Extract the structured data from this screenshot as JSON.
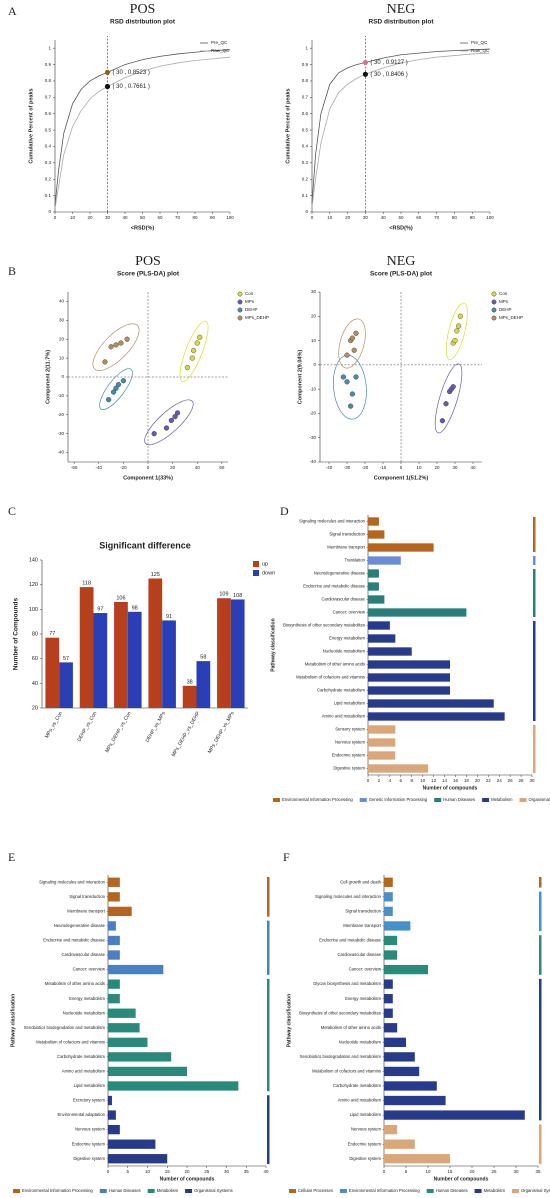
{
  "chart_data": [
    {
      "type": "line",
      "panel": "A",
      "title": "POS",
      "subtitle": "RSD distribution plot",
      "xlabel": "<RSD(%)",
      "ylabel": "Cumulative Percent of peaks",
      "xlim": [
        0,
        100
      ],
      "xticks": [
        0,
        10,
        20,
        30,
        40,
        50,
        60,
        70,
        80,
        90,
        100
      ],
      "ylim": [
        0,
        1.05
      ],
      "yticks": [
        0,
        0.1,
        0.2,
        0.3,
        0.4,
        0.5,
        0.6,
        0.7,
        0.8,
        0.9,
        1
      ],
      "legend": "upper right",
      "series": [
        {
          "name": "Pre_QC",
          "color": "#555555",
          "x": [
            0,
            2,
            5,
            10,
            15,
            20,
            25,
            30,
            40,
            50,
            60,
            70,
            80,
            90,
            100
          ],
          "values": [
            0.04,
            0.25,
            0.48,
            0.66,
            0.75,
            0.8,
            0.83,
            0.8523,
            0.9,
            0.93,
            0.95,
            0.965,
            0.975,
            0.985,
            0.99
          ]
        },
        {
          "name": "Raw_QC",
          "color": "#aaaaaa",
          "x": [
            0,
            2,
            5,
            10,
            15,
            20,
            25,
            30,
            40,
            50,
            60,
            70,
            80,
            90,
            100
          ],
          "values": [
            0.02,
            0.15,
            0.35,
            0.52,
            0.62,
            0.69,
            0.735,
            0.7661,
            0.82,
            0.86,
            0.89,
            0.91,
            0.925,
            0.935,
            0.945
          ]
        }
      ],
      "markers": [
        {
          "x": 30,
          "y": 0.8523,
          "label": "( 30 , 0.8523 )",
          "color": "#8b6914"
        },
        {
          "x": 30,
          "y": 0.7661,
          "label": "( 30 , 0.7661 )",
          "color": "#111111"
        }
      ]
    },
    {
      "type": "line",
      "title": "NEG",
      "subtitle": "RSD distribution plot",
      "xlabel": "<RSD(%)",
      "ylabel": "Cumulative Percent of peaks",
      "xlim": [
        0,
        100
      ],
      "xticks": [
        0,
        10,
        20,
        30,
        40,
        50,
        60,
        70,
        80,
        90,
        100
      ],
      "ylim": [
        0,
        1.05
      ],
      "yticks": [
        0,
        0.1,
        0.2,
        0.3,
        0.4,
        0.5,
        0.6,
        0.7,
        0.8,
        0.9,
        1
      ],
      "legend": "upper right",
      "series": [
        {
          "name": "Pre_QC",
          "color": "#555555",
          "x": [
            0,
            2,
            5,
            10,
            15,
            20,
            25,
            30,
            40,
            50,
            60,
            70,
            80,
            90,
            100
          ],
          "values": [
            0.05,
            0.35,
            0.6,
            0.78,
            0.85,
            0.88,
            0.9,
            0.9127,
            0.94,
            0.96,
            0.97,
            0.98,
            0.985,
            0.99,
            0.995
          ]
        },
        {
          "name": "Raw_QC",
          "color": "#aaaaaa",
          "x": [
            0,
            2,
            5,
            10,
            15,
            20,
            25,
            30,
            40,
            50,
            60,
            70,
            80,
            90,
            100
          ],
          "values": [
            0.03,
            0.2,
            0.42,
            0.63,
            0.73,
            0.78,
            0.815,
            0.8406,
            0.88,
            0.91,
            0.93,
            0.945,
            0.955,
            0.965,
            0.97
          ]
        }
      ],
      "markers": [
        {
          "x": 30,
          "y": 0.9127,
          "label": "( 30 , 0.9127 )",
          "color": "#e07090"
        },
        {
          "x": 30,
          "y": 0.8406,
          "label": "( 30 , 0.8406 )",
          "color": "#111111"
        }
      ]
    },
    {
      "type": "scatter",
      "panel": "B",
      "title": "POS",
      "subtitle": "Score (PLS-DA) plot",
      "xlabel": "Component 1(33%)",
      "ylabel": "Component 2(11.7%)",
      "xlim": [
        -65,
        65
      ],
      "xticks": [
        -60,
        -40,
        -20,
        0,
        20,
        40,
        60
      ],
      "ylim": [
        -45,
        45
      ],
      "yticks": [
        -40,
        -30,
        -20,
        -10,
        0,
        10,
        20,
        30,
        40
      ],
      "legend": "right",
      "series": [
        {
          "name": "Con",
          "color": "#d8d840",
          "x": [
            32,
            36,
            37,
            40,
            42
          ],
          "values": [
            5,
            10,
            14,
            18,
            21
          ]
        },
        {
          "name": "MPs",
          "color": "#6a5aaa",
          "x": [
            5,
            15,
            19,
            22,
            24
          ],
          "values": [
            -30,
            -27,
            -23,
            -21,
            -19
          ]
        },
        {
          "name": "DEHP",
          "color": "#4a8aaa",
          "x": [
            -32,
            -28,
            -26,
            -24,
            -20
          ],
          "values": [
            -12,
            -8,
            -6,
            -4,
            -2
          ]
        },
        {
          "name": "MPs_DEHP",
          "color": "#b09060",
          "x": [
            -35,
            -30,
            -26,
            -22,
            -17
          ],
          "values": [
            8,
            16,
            17,
            18,
            20
          ]
        }
      ]
    },
    {
      "type": "scatter",
      "title": "NEG",
      "subtitle": "Score (PLS-DA) plot",
      "xlabel": "Component 1(51.2%)",
      "ylabel": "Component 2(9.04%)",
      "xlim": [
        -45,
        45
      ],
      "xticks": [
        -40,
        -30,
        -20,
        -10,
        0,
        10,
        20,
        30,
        40
      ],
      "ylim": [
        -40,
        30
      ],
      "yticks": [
        -40,
        -30,
        -20,
        -10,
        0,
        10,
        20,
        30
      ],
      "legend": "right",
      "series": [
        {
          "name": "Con",
          "color": "#d8d840",
          "x": [
            29,
            30,
            31,
            32,
            33
          ],
          "values": [
            9,
            10,
            14,
            16,
            20
          ]
        },
        {
          "name": "MPs",
          "color": "#6a5aaa",
          "x": [
            23,
            25,
            27,
            28,
            29
          ],
          "values": [
            -23,
            -16,
            -11,
            -10,
            -9
          ]
        },
        {
          "name": "DEHP",
          "color": "#4a8aaa",
          "x": [
            -32,
            -30,
            -28,
            -27,
            -25
          ],
          "values": [
            -5,
            -7,
            -17,
            -12,
            -5
          ]
        },
        {
          "name": "MPs_DEHP",
          "color": "#b09060",
          "x": [
            -30,
            -28,
            -27,
            -26,
            -25
          ],
          "values": [
            4,
            10,
            11,
            6,
            13
          ]
        }
      ]
    },
    {
      "type": "bar",
      "panel": "C",
      "title": "Significant difference",
      "ylabel": "Number of Compounds",
      "categories": [
        "MPs_vs_Con",
        "DEHP_vs_Con",
        "MPs_DEHP_vs_Con",
        "DEHP_vs_MPs",
        "MPs_DEHP_vs_DEHP",
        "MPs_DEHP_vs_MPs"
      ],
      "ylim": [
        20,
        140
      ],
      "yticks": [
        20,
        40,
        60,
        80,
        100,
        120,
        140
      ],
      "legend": "right",
      "series": [
        {
          "name": "up",
          "color": "#b5401b",
          "values": [
            77,
            118,
            106,
            125,
            38,
            109
          ]
        },
        {
          "name": "down",
          "color": "#2a3fb5",
          "values": [
            57,
            97,
            98,
            91,
            58,
            108
          ]
        }
      ]
    },
    {
      "type": "hbar",
      "panel": "D",
      "xlabel": "Number of compounds",
      "ylabel": "Pathway classification",
      "xlim": [
        0,
        30
      ],
      "xticks": [
        0,
        2,
        4,
        6,
        8,
        10,
        12,
        14,
        16,
        18,
        20,
        22,
        24,
        26,
        28,
        30
      ],
      "legend": "bottom",
      "series": [
        {
          "name": "Environmental Information Processing",
          "color": "#b5651d",
          "categories": [
            "Signaling molecules and interaction",
            "Signal transduction",
            "Membrane transport"
          ],
          "values": [
            2,
            3,
            12
          ]
        },
        {
          "name": "Genetic Information Processing",
          "color": "#6a8cd6",
          "categories": [
            "Translation"
          ],
          "values": [
            6
          ]
        },
        {
          "name": "Human Diseases",
          "color": "#2a7f7a",
          "categories": [
            "Neurodegenerative disease",
            "Endocrine and metabolic disease",
            "Cardiovascular disease",
            "Cancer: overview"
          ],
          "values": [
            2,
            2,
            3,
            18
          ]
        },
        {
          "name": "Metabolism",
          "color": "#283a8a",
          "categories": [
            "Biosynthesis of other secondary metabolites",
            "Energy metabolism",
            "Nucleotide metabolism",
            "Metabolism of other amino acids",
            "Metabolism of cofactors and vitamins",
            "Carbohydrate metabolism",
            "Lipid metabolism",
            "Amino acid metabolism"
          ],
          "values": [
            4,
            5,
            8,
            15,
            15,
            15,
            23,
            25
          ]
        },
        {
          "name": "Organismal Systems",
          "color": "#d9a77a",
          "categories": [
            "Sensory system",
            "Nervous system",
            "Endocrine system",
            "Digestive system"
          ],
          "values": [
            5,
            5,
            5,
            11
          ]
        }
      ]
    },
    {
      "type": "hbar",
      "panel": "E",
      "xlabel": "Number of compounds",
      "ylabel": "Pathway classification",
      "xlim": [
        0,
        40
      ],
      "xticks": [
        0,
        5,
        10,
        15,
        20,
        25,
        30,
        35,
        40
      ],
      "legend": "bottom",
      "series": [
        {
          "name": "Environmental Information Processing",
          "color": "#b5651d",
          "categories": [
            "Signaling molecules and interaction",
            "Signal transduction",
            "Membrane transport"
          ],
          "values": [
            3,
            3,
            6
          ]
        },
        {
          "name": "Human Diseases",
          "color": "#4a7fc0",
          "categories": [
            "Neurodegenerative disease",
            "Endocrine and metabolic disease",
            "Cardiovascular disease",
            "Cancer: overview"
          ],
          "values": [
            2,
            3,
            3,
            14
          ]
        },
        {
          "name": "Metabolism",
          "color": "#2a8a7a",
          "categories": [
            "Metabolism of other amino acids",
            "Energy metabolism",
            "Nucleotide metabolism",
            "Xenobiotics biodegradation and metabolism",
            "Metabolism of cofactors and vitamins",
            "Carbohydrate metabolism",
            "Amino acid metabolism",
            "Lipid metabolism"
          ],
          "values": [
            3,
            3,
            7,
            8,
            10,
            16,
            20,
            33
          ]
        },
        {
          "name": "Organismal Systems",
          "color": "#283a8a",
          "categories": [
            "Excretory system",
            "Environmental adaptation",
            "Nervous system",
            "Endocrine system",
            "Digestive system"
          ],
          "values": [
            1,
            2,
            3,
            12,
            15
          ]
        }
      ]
    },
    {
      "type": "hbar",
      "panel": "F",
      "xlabel": "Number of compounds",
      "ylabel": "Pathway classification",
      "xlim": [
        0,
        35
      ],
      "xticks": [
        0,
        5,
        10,
        15,
        20,
        25,
        30,
        35
      ],
      "legend": "bottom",
      "series": [
        {
          "name": "Cellular Processes",
          "color": "#b5651d",
          "categories": [
            "Cell growth and death"
          ],
          "values": [
            2
          ]
        },
        {
          "name": "Environmental Information Processing",
          "color": "#4a90c8",
          "categories": [
            "Signaling molecules and interaction",
            "Signal transduction",
            "Membrane transport"
          ],
          "values": [
            2,
            2,
            6
          ]
        },
        {
          "name": "Human Diseases",
          "color": "#2a8a7a",
          "categories": [
            "Endocrine and metabolic disease",
            "Cardiovascular disease",
            "Cancer: overview"
          ],
          "values": [
            3,
            3,
            10
          ]
        },
        {
          "name": "Metabolism",
          "color": "#283a8a",
          "categories": [
            "Glycan biosynthesis and metabolism",
            "Energy metabolism",
            "Biosynthesis of other secondary metabolites",
            "Metabolism of other amino acids",
            "Nucleotide metabolism",
            "Xenobiotics biodegradation and metabolism",
            "Metabolism of cofactors and vitamins",
            "Carbohydrate metabolism",
            "Amino acid metabolism",
            "Lipid metabolism"
          ],
          "values": [
            2,
            2,
            2,
            3,
            5,
            7,
            8,
            12,
            14,
            32
          ]
        },
        {
          "name": "Organismal Systems",
          "color": "#d9a77a",
          "categories": [
            "Nervous system",
            "Endocrine system",
            "Digestive system"
          ],
          "values": [
            3,
            7,
            15
          ]
        }
      ]
    }
  ]
}
